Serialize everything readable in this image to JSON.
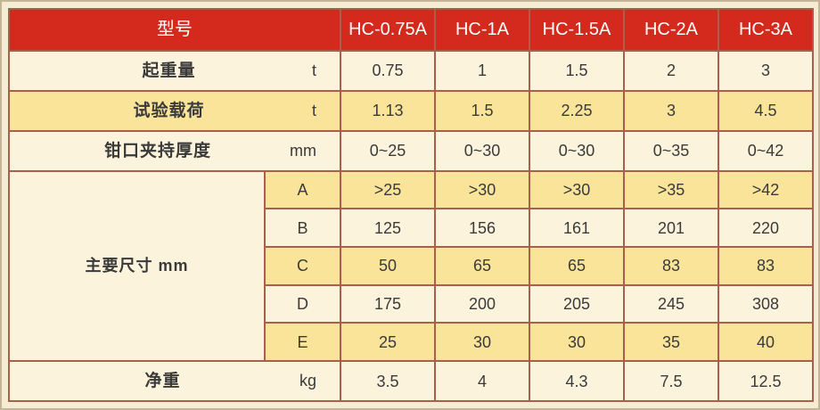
{
  "title": "HC series clamp specification table",
  "colors": {
    "page_background": "#f5ecd3",
    "page_edge": "#c4b498",
    "header_red": "#d4291d",
    "header_divider": "#8e1f15",
    "grid_border": "#a8604c",
    "row_light": "#fbf3dc",
    "row_dark": "#f9e49a",
    "text": "#3a3a3a",
    "header_text": "#ffffff"
  },
  "table": {
    "header": {
      "label": "型号",
      "models": [
        "HC-0.75A",
        "HC-1A",
        "HC-1.5A",
        "HC-2A",
        "HC-3A"
      ]
    },
    "body_rows": [
      {
        "label": "起重量",
        "unit": "t",
        "shade": "light",
        "values": [
          "0.75",
          "1",
          "1.5",
          "2",
          "3"
        ]
      },
      {
        "label": "试验载荷",
        "unit": "t",
        "shade": "dark",
        "values": [
          "1.13",
          "1.5",
          "2.25",
          "3",
          "4.5"
        ]
      },
      {
        "label": "钳口夹持厚度",
        "unit": "mm",
        "shade": "light",
        "values": [
          "0~25",
          "0~30",
          "0~30",
          "0~35",
          "0~42"
        ]
      }
    ],
    "dimensions": {
      "label": "主要尺寸  mm",
      "rows": [
        {
          "sub": "A",
          "shade": "dark",
          "values": [
            ">25",
            ">30",
            ">30",
            ">35",
            ">42"
          ]
        },
        {
          "sub": "B",
          "shade": "light",
          "values": [
            "125",
            "156",
            "161",
            "201",
            "220"
          ]
        },
        {
          "sub": "C",
          "shade": "dark",
          "values": [
            "50",
            "65",
            "65",
            "83",
            "83"
          ]
        },
        {
          "sub": "D",
          "shade": "light",
          "values": [
            "175",
            "200",
            "205",
            "245",
            "308"
          ]
        },
        {
          "sub": "E",
          "shade": "dark",
          "values": [
            "25",
            "30",
            "30",
            "35",
            "40"
          ]
        }
      ]
    },
    "footer_row": {
      "label": "净重",
      "unit": "kg",
      "shade": "light",
      "values": [
        "3.5",
        "4",
        "4.3",
        "7.5",
        "12.5"
      ]
    }
  },
  "chart_data": {
    "type": "table",
    "title": "型号 / HC series specifications",
    "columns": [
      "型号",
      "HC-0.75A",
      "HC-1A",
      "HC-1.5A",
      "HC-2A",
      "HC-3A"
    ],
    "rows": [
      [
        "起重量 (t)",
        "0.75",
        "1",
        "1.5",
        "2",
        "3"
      ],
      [
        "试验载荷 (t)",
        "1.13",
        "1.5",
        "2.25",
        "3",
        "4.5"
      ],
      [
        "钳口夹持厚度 (mm)",
        "0~25",
        "0~30",
        "0~30",
        "0~35",
        "0~42"
      ],
      [
        "主要尺寸 A (mm)",
        ">25",
        ">30",
        ">30",
        ">35",
        ">42"
      ],
      [
        "主要尺寸 B (mm)",
        "125",
        "156",
        "161",
        "201",
        "220"
      ],
      [
        "主要尺寸 C (mm)",
        "50",
        "65",
        "65",
        "83",
        "83"
      ],
      [
        "主要尺寸 D (mm)",
        "175",
        "200",
        "205",
        "245",
        "308"
      ],
      [
        "主要尺寸 E (mm)",
        "25",
        "30",
        "30",
        "35",
        "40"
      ],
      [
        "净重 (kg)",
        "3.5",
        "4",
        "4.3",
        "7.5",
        "12.5"
      ]
    ]
  }
}
